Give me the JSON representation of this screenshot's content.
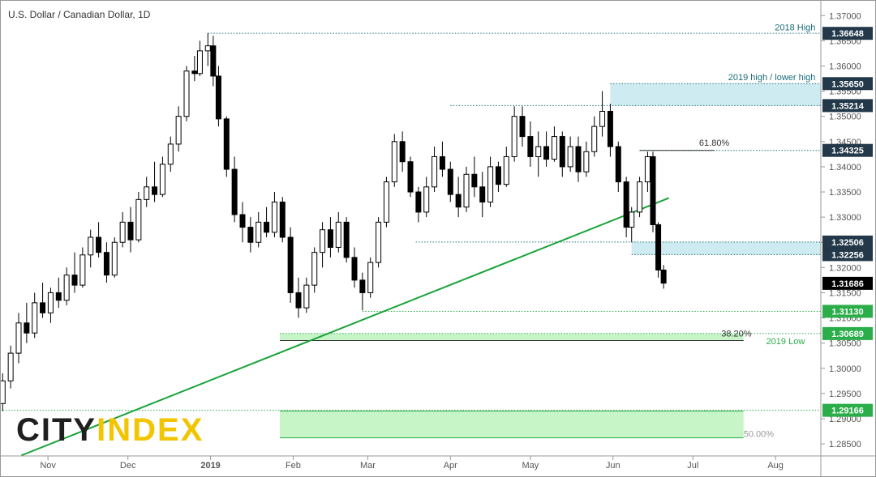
{
  "chart_data": {
    "type": "candlestick",
    "title": "U.S. Dollar / Canadian Dollar, 1D",
    "logo": {
      "left": "CITY",
      "right": "INDEX"
    },
    "xlim": [
      -18,
      290
    ],
    "ylim": [
      1.2826,
      1.3731
    ],
    "xticks": [
      {
        "value": 0,
        "label": "Nov"
      },
      {
        "value": 30,
        "label": "Dec"
      },
      {
        "value": 61,
        "label": "2019"
      },
      {
        "value": 92,
        "label": "Feb"
      },
      {
        "value": 120,
        "label": "Mar"
      },
      {
        "value": 151,
        "label": "Apr"
      },
      {
        "value": 181,
        "label": "May"
      },
      {
        "value": 212,
        "label": "Jun"
      },
      {
        "value": 242,
        "label": "Jul"
      },
      {
        "value": 273,
        "label": "Aug"
      }
    ],
    "yticks": [
      {
        "value": 1.285,
        "label": "1.28500"
      },
      {
        "value": 1.29,
        "label": "1.29000"
      },
      {
        "value": 1.295,
        "label": "1.29500"
      },
      {
        "value": 1.3,
        "label": "1.30000"
      },
      {
        "value": 1.305,
        "label": "1.30500"
      },
      {
        "value": 1.31,
        "label": "1.31000"
      },
      {
        "value": 1.315,
        "label": "1.31500"
      },
      {
        "value": 1.32,
        "label": "1.32000"
      },
      {
        "value": 1.325,
        "label": "1.32500"
      },
      {
        "value": 1.33,
        "label": "1.33000"
      },
      {
        "value": 1.335,
        "label": "1.33500"
      },
      {
        "value": 1.34,
        "label": "1.34000"
      },
      {
        "value": 1.345,
        "label": "1.34500"
      },
      {
        "value": 1.35,
        "label": "1.35000"
      },
      {
        "value": 1.355,
        "label": "1.35500"
      },
      {
        "value": 1.36,
        "label": "1.36000"
      },
      {
        "value": 1.365,
        "label": "1.36500"
      },
      {
        "value": 1.37,
        "label": "1.37000"
      }
    ],
    "up_color": "#ffffff",
    "down_color": "#000000",
    "candles": [
      {
        "x": -17,
        "o": 1.293,
        "h": 1.299,
        "l": 1.2915,
        "c": 1.2975
      },
      {
        "x": -14,
        "o": 1.2975,
        "h": 1.3045,
        "l": 1.296,
        "c": 1.303
      },
      {
        "x": -11,
        "o": 1.303,
        "h": 1.311,
        "l": 1.301,
        "c": 1.309
      },
      {
        "x": -8,
        "o": 1.309,
        "h": 1.313,
        "l": 1.305,
        "c": 1.307
      },
      {
        "x": -5,
        "o": 1.307,
        "h": 1.315,
        "l": 1.306,
        "c": 1.313
      },
      {
        "x": -2,
        "o": 1.313,
        "h": 1.317,
        "l": 1.31,
        "c": 1.311
      },
      {
        "x": 1,
        "o": 1.311,
        "h": 1.316,
        "l": 1.309,
        "c": 1.315
      },
      {
        "x": 4,
        "o": 1.315,
        "h": 1.318,
        "l": 1.312,
        "c": 1.3135
      },
      {
        "x": 7,
        "o": 1.3135,
        "h": 1.32,
        "l": 1.3125,
        "c": 1.3185
      },
      {
        "x": 10,
        "o": 1.3185,
        "h": 1.323,
        "l": 1.315,
        "c": 1.3165
      },
      {
        "x": 13,
        "o": 1.3165,
        "h": 1.324,
        "l": 1.316,
        "c": 1.3225
      },
      {
        "x": 16,
        "o": 1.3225,
        "h": 1.3275,
        "l": 1.32,
        "c": 1.326
      },
      {
        "x": 19,
        "o": 1.326,
        "h": 1.329,
        "l": 1.322,
        "c": 1.323
      },
      {
        "x": 22,
        "o": 1.323,
        "h": 1.325,
        "l": 1.317,
        "c": 1.3185
      },
      {
        "x": 25,
        "o": 1.3185,
        "h": 1.326,
        "l": 1.318,
        "c": 1.325
      },
      {
        "x": 28,
        "o": 1.325,
        "h": 1.331,
        "l": 1.324,
        "c": 1.329
      },
      {
        "x": 31,
        "o": 1.329,
        "h": 1.332,
        "l": 1.323,
        "c": 1.3255
      },
      {
        "x": 34,
        "o": 1.3255,
        "h": 1.335,
        "l": 1.325,
        "c": 1.3335
      },
      {
        "x": 37,
        "o": 1.3335,
        "h": 1.338,
        "l": 1.332,
        "c": 1.336
      },
      {
        "x": 40,
        "o": 1.336,
        "h": 1.341,
        "l": 1.333,
        "c": 1.3345
      },
      {
        "x": 43,
        "o": 1.3345,
        "h": 1.342,
        "l": 1.334,
        "c": 1.3405
      },
      {
        "x": 46,
        "o": 1.3405,
        "h": 1.346,
        "l": 1.339,
        "c": 1.3445
      },
      {
        "x": 49,
        "o": 1.3445,
        "h": 1.352,
        "l": 1.343,
        "c": 1.35
      },
      {
        "x": 52,
        "o": 1.35,
        "h": 1.36,
        "l": 1.349,
        "c": 1.359
      },
      {
        "x": 55,
        "o": 1.359,
        "h": 1.362,
        "l": 1.357,
        "c": 1.3585
      },
      {
        "x": 57,
        "o": 1.3585,
        "h": 1.365,
        "l": 1.358,
        "c": 1.363
      },
      {
        "x": 60,
        "o": 1.363,
        "h": 1.3665,
        "l": 1.36,
        "c": 1.364
      },
      {
        "x": 62,
        "o": 1.364,
        "h": 1.366,
        "l": 1.356,
        "c": 1.358
      },
      {
        "x": 64,
        "o": 1.358,
        "h": 1.36,
        "l": 1.348,
        "c": 1.3495
      },
      {
        "x": 67,
        "o": 1.3495,
        "h": 1.35,
        "l": 1.338,
        "c": 1.3395
      },
      {
        "x": 70,
        "o": 1.3395,
        "h": 1.342,
        "l": 1.329,
        "c": 1.3305
      },
      {
        "x": 73,
        "o": 1.3305,
        "h": 1.333,
        "l": 1.325,
        "c": 1.328
      },
      {
        "x": 76,
        "o": 1.328,
        "h": 1.33,
        "l": 1.323,
        "c": 1.325
      },
      {
        "x": 79,
        "o": 1.325,
        "h": 1.331,
        "l": 1.324,
        "c": 1.329
      },
      {
        "x": 82,
        "o": 1.329,
        "h": 1.332,
        "l": 1.326,
        "c": 1.327
      },
      {
        "x": 85,
        "o": 1.327,
        "h": 1.335,
        "l": 1.326,
        "c": 1.333
      },
      {
        "x": 88,
        "o": 1.333,
        "h": 1.334,
        "l": 1.325,
        "c": 1.326
      },
      {
        "x": 91,
        "o": 1.326,
        "h": 1.328,
        "l": 1.313,
        "c": 1.315
      },
      {
        "x": 94,
        "o": 1.315,
        "h": 1.318,
        "l": 1.31,
        "c": 1.312
      },
      {
        "x": 97,
        "o": 1.312,
        "h": 1.318,
        "l": 1.311,
        "c": 1.3165
      },
      {
        "x": 100,
        "o": 1.3165,
        "h": 1.324,
        "l": 1.315,
        "c": 1.323
      },
      {
        "x": 103,
        "o": 1.323,
        "h": 1.329,
        "l": 1.32,
        "c": 1.3275
      },
      {
        "x": 106,
        "o": 1.3275,
        "h": 1.33,
        "l": 1.322,
        "c": 1.324
      },
      {
        "x": 109,
        "o": 1.324,
        "h": 1.331,
        "l": 1.323,
        "c": 1.329
      },
      {
        "x": 112,
        "o": 1.329,
        "h": 1.33,
        "l": 1.321,
        "c": 1.322
      },
      {
        "x": 115,
        "o": 1.322,
        "h": 1.324,
        "l": 1.316,
        "c": 1.3175
      },
      {
        "x": 118,
        "o": 1.3175,
        "h": 1.319,
        "l": 1.3115,
        "c": 1.315
      },
      {
        "x": 121,
        "o": 1.315,
        "h": 1.322,
        "l": 1.314,
        "c": 1.321
      },
      {
        "x": 124,
        "o": 1.321,
        "h": 1.33,
        "l": 1.32,
        "c": 1.329
      },
      {
        "x": 127,
        "o": 1.329,
        "h": 1.338,
        "l": 1.328,
        "c": 1.337
      },
      {
        "x": 130,
        "o": 1.337,
        "h": 1.3465,
        "l": 1.336,
        "c": 1.345
      },
      {
        "x": 133,
        "o": 1.345,
        "h": 1.347,
        "l": 1.339,
        "c": 1.341
      },
      {
        "x": 136,
        "o": 1.341,
        "h": 1.342,
        "l": 1.334,
        "c": 1.335
      },
      {
        "x": 139,
        "o": 1.335,
        "h": 1.336,
        "l": 1.329,
        "c": 1.331
      },
      {
        "x": 142,
        "o": 1.331,
        "h": 1.338,
        "l": 1.33,
        "c": 1.336
      },
      {
        "x": 145,
        "o": 1.336,
        "h": 1.344,
        "l": 1.335,
        "c": 1.342
      },
      {
        "x": 148,
        "o": 1.342,
        "h": 1.345,
        "l": 1.338,
        "c": 1.3395
      },
      {
        "x": 151,
        "o": 1.3395,
        "h": 1.341,
        "l": 1.333,
        "c": 1.3345
      },
      {
        "x": 154,
        "o": 1.3345,
        "h": 1.338,
        "l": 1.33,
        "c": 1.332
      },
      {
        "x": 157,
        "o": 1.332,
        "h": 1.34,
        "l": 1.331,
        "c": 1.3385
      },
      {
        "x": 160,
        "o": 1.3385,
        "h": 1.342,
        "l": 1.334,
        "c": 1.336
      },
      {
        "x": 163,
        "o": 1.336,
        "h": 1.339,
        "l": 1.33,
        "c": 1.333
      },
      {
        "x": 166,
        "o": 1.333,
        "h": 1.342,
        "l": 1.332,
        "c": 1.34
      },
      {
        "x": 169,
        "o": 1.34,
        "h": 1.341,
        "l": 1.335,
        "c": 1.3365
      },
      {
        "x": 172,
        "o": 1.3365,
        "h": 1.344,
        "l": 1.336,
        "c": 1.342
      },
      {
        "x": 175,
        "o": 1.342,
        "h": 1.352,
        "l": 1.341,
        "c": 1.35
      },
      {
        "x": 178,
        "o": 1.35,
        "h": 1.352,
        "l": 1.344,
        "c": 1.346
      },
      {
        "x": 181,
        "o": 1.346,
        "h": 1.349,
        "l": 1.34,
        "c": 1.342
      },
      {
        "x": 184,
        "o": 1.342,
        "h": 1.347,
        "l": 1.338,
        "c": 1.344
      },
      {
        "x": 187,
        "o": 1.344,
        "h": 1.347,
        "l": 1.34,
        "c": 1.3415
      },
      {
        "x": 190,
        "o": 1.3415,
        "h": 1.348,
        "l": 1.341,
        "c": 1.346
      },
      {
        "x": 193,
        "o": 1.346,
        "h": 1.347,
        "l": 1.338,
        "c": 1.34
      },
      {
        "x": 196,
        "o": 1.34,
        "h": 1.346,
        "l": 1.339,
        "c": 1.344
      },
      {
        "x": 199,
        "o": 1.344,
        "h": 1.346,
        "l": 1.337,
        "c": 1.339
      },
      {
        "x": 202,
        "o": 1.339,
        "h": 1.345,
        "l": 1.338,
        "c": 1.343
      },
      {
        "x": 205,
        "o": 1.343,
        "h": 1.35,
        "l": 1.342,
        "c": 1.348
      },
      {
        "x": 208,
        "o": 1.348,
        "h": 1.355,
        "l": 1.346,
        "c": 1.351
      },
      {
        "x": 211,
        "o": 1.351,
        "h": 1.3525,
        "l": 1.342,
        "c": 1.344
      },
      {
        "x": 214,
        "o": 1.344,
        "h": 1.345,
        "l": 1.335,
        "c": 1.337
      },
      {
        "x": 217,
        "o": 1.337,
        "h": 1.338,
        "l": 1.326,
        "c": 1.328
      },
      {
        "x": 219,
        "o": 1.328,
        "h": 1.332,
        "l": 1.325,
        "c": 1.331
      },
      {
        "x": 222,
        "o": 1.331,
        "h": 1.338,
        "l": 1.33,
        "c": 1.337
      },
      {
        "x": 225,
        "o": 1.337,
        "h": 1.343,
        "l": 1.335,
        "c": 1.342
      },
      {
        "x": 227,
        "o": 1.342,
        "h": 1.343,
        "l": 1.327,
        "c": 1.3285
      },
      {
        "x": 229,
        "o": 1.3285,
        "h": 1.329,
        "l": 1.318,
        "c": 1.3195
      },
      {
        "x": 231,
        "o": 1.3195,
        "h": 1.3205,
        "l": 1.3158,
        "c": 1.3169
      }
    ],
    "zones": [
      {
        "y0": 1.35214,
        "y1": 1.3565,
        "x0": 211,
        "x1": 290,
        "color": "#cdebf0"
      },
      {
        "y0": 1.32256,
        "y1": 1.32506,
        "x0": 219,
        "x1": 290,
        "color": "#cdebf0"
      },
      {
        "y0": 1.3055,
        "y1": 1.30689,
        "x0": 87,
        "x1": 261,
        "color": "#c8f5c8"
      },
      {
        "y0": 1.2862,
        "y1": 1.2915,
        "x0": 87,
        "x1": 261,
        "color": "#c8f5c8"
      }
    ],
    "levels": [
      {
        "value": 1.36648,
        "x0": 60,
        "x1": 290,
        "color": "#1a6e7a",
        "dash": true
      },
      {
        "value": 1.3565,
        "x0": 211,
        "x1": 290,
        "color": "#1a6e7a",
        "dash": true
      },
      {
        "value": 1.35214,
        "x0": 151,
        "x1": 290,
        "color": "#1a6e7a",
        "dash": true
      },
      {
        "value": 1.34325,
        "x0": 222,
        "x1": 290,
        "color": "#1a6e7a",
        "dash": true
      },
      {
        "value": 1.34325,
        "x0": 222,
        "x1": 250,
        "color": "#333333",
        "dash": false
      },
      {
        "value": 1.32506,
        "x0": 138,
        "x1": 290,
        "color": "#1a6e7a",
        "dash": true
      },
      {
        "value": 1.32256,
        "x0": 219,
        "x1": 290,
        "color": "#1a6e7a",
        "dash": true
      },
      {
        "value": 1.3113,
        "x0": 118,
        "x1": 290,
        "color": "#2bae4a",
        "dash": true
      },
      {
        "value": 1.30689,
        "x0": 87,
        "x1": 290,
        "color": "#2bae4a",
        "dash": true
      },
      {
        "value": 1.3055,
        "x0": 87,
        "x1": 261,
        "color": "#333333",
        "dash": false
      },
      {
        "value": 1.29166,
        "x0": -18,
        "x1": 290,
        "color": "#2bae4a",
        "dash": true
      },
      {
        "value": 1.2915,
        "x0": 87,
        "x1": 261,
        "color": "#2bae4a",
        "dash": false
      },
      {
        "value": 1.2862,
        "x0": 87,
        "x1": 261,
        "color": "#2bae4a",
        "dash": false
      }
    ],
    "trendline": {
      "x": [
        -10,
        233
      ],
      "y": [
        1.2827,
        1.3338
      ],
      "color": "#1aa33a"
    },
    "annotations": [
      {
        "text": "2018 High",
        "x": 288,
        "y": 1.3671,
        "color": "#1a6e7a",
        "anchor": "end"
      },
      {
        "text": "2019 high / lower high",
        "x": 288,
        "y": 1.3572,
        "color": "#1a6e7a",
        "anchor": "end"
      },
      {
        "text": "61.80%",
        "x": 250,
        "y": 1.3442,
        "color": "#333333",
        "anchor": "middle"
      },
      {
        "text": "38.20%",
        "x": 264,
        "y": 1.3063,
        "color": "#333333",
        "anchor": "end"
      },
      {
        "text": "2019 Low",
        "x": 284,
        "y": 1.3048,
        "color": "#2bae4a",
        "anchor": "end"
      },
      {
        "text": "50.00%",
        "x": 261,
        "y": 1.2864,
        "color": "#999999",
        "anchor": "start"
      }
    ],
    "price_tags": [
      {
        "value": 1.36648,
        "label": "1.36648",
        "color": "#23394a"
      },
      {
        "value": 1.3565,
        "label": "1.35650",
        "color": "#23394a"
      },
      {
        "value": 1.35214,
        "label": "1.35214",
        "color": "#23394a"
      },
      {
        "value": 1.34325,
        "label": "1.34325",
        "color": "#23394a"
      },
      {
        "value": 1.32506,
        "label": "1.32506",
        "color": "#23394a"
      },
      {
        "value": 1.32256,
        "label": "1.32256",
        "color": "#23394a"
      },
      {
        "value": 1.31686,
        "label": "1.31686",
        "color": "#000000"
      },
      {
        "value": 1.3113,
        "label": "1.31130",
        "color": "#2bae4a"
      },
      {
        "value": 1.30689,
        "label": "1.30689",
        "color": "#2bae4a"
      },
      {
        "value": 1.29166,
        "label": "1.29166",
        "color": "#2bae4a"
      }
    ]
  }
}
